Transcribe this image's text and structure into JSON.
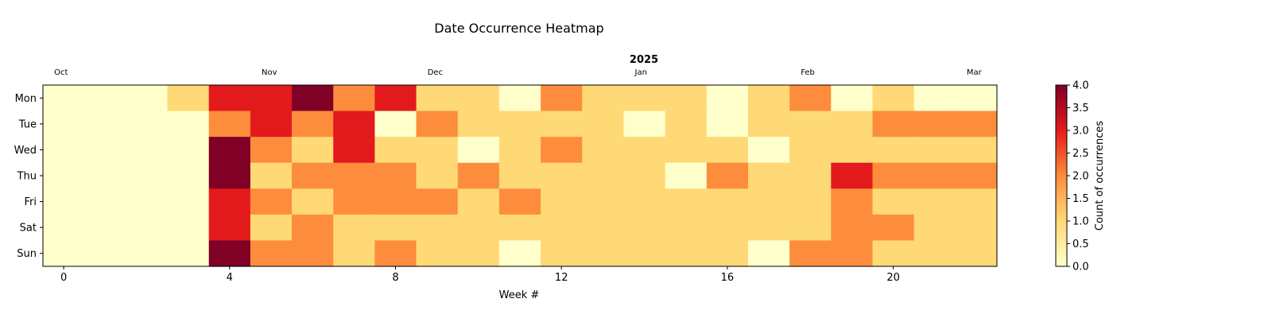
{
  "chart_data": {
    "type": "heatmap",
    "title": "Date Occurrence Heatmap",
    "year_label": "2025",
    "xlabel": "Week #",
    "ylabel": "",
    "x_ticks": [
      0,
      4,
      8,
      12,
      16,
      20
    ],
    "x_range": [
      -0.5,
      22.5
    ],
    "month_labels": [
      {
        "label": "Oct",
        "week": 0
      },
      {
        "label": "Nov",
        "week": 5
      },
      {
        "label": "Dec",
        "week": 9
      },
      {
        "label": "Jan",
        "week": 14
      },
      {
        "label": "Feb",
        "week": 18
      },
      {
        "label": "Mar",
        "week": 22
      }
    ],
    "rows": [
      "Mon",
      "Tue",
      "Wed",
      "Thu",
      "Fri",
      "Sat",
      "Sun"
    ],
    "weeks": [
      0,
      1,
      2,
      3,
      4,
      5,
      6,
      7,
      8,
      9,
      10,
      11,
      12,
      13,
      14,
      15,
      16,
      17,
      18,
      19,
      20,
      21,
      22
    ],
    "values": [
      [
        0,
        0,
        0,
        1,
        3,
        3,
        4,
        2,
        3,
        1,
        1,
        0,
        2,
        1,
        1,
        1,
        0,
        1,
        2,
        0,
        1,
        0,
        0
      ],
      [
        0,
        0,
        0,
        0,
        2,
        3,
        2,
        3,
        0,
        2,
        1,
        1,
        1,
        1,
        0,
        1,
        0,
        1,
        1,
        1,
        2,
        2,
        2
      ],
      [
        0,
        0,
        0,
        0,
        4,
        2,
        1,
        3,
        1,
        1,
        0,
        1,
        2,
        1,
        1,
        1,
        1,
        0,
        1,
        1,
        1,
        1,
        1
      ],
      [
        0,
        0,
        0,
        0,
        4,
        1,
        2,
        2,
        2,
        1,
        2,
        1,
        1,
        1,
        1,
        0,
        2,
        1,
        1,
        3,
        2,
        2,
        2
      ],
      [
        0,
        0,
        0,
        0,
        3,
        2,
        1,
        2,
        2,
        2,
        1,
        2,
        1,
        1,
        1,
        1,
        1,
        1,
        1,
        2,
        1,
        1,
        1
      ],
      [
        0,
        0,
        0,
        0,
        3,
        1,
        2,
        1,
        1,
        1,
        1,
        1,
        1,
        1,
        1,
        1,
        1,
        1,
        1,
        2,
        2,
        1,
        1
      ],
      [
        0,
        0,
        0,
        0,
        4,
        2,
        2,
        1,
        2,
        1,
        1,
        0,
        1,
        1,
        1,
        1,
        1,
        0,
        2,
        2,
        1,
        1,
        1
      ]
    ],
    "color_scale": {
      "min": 0,
      "max": 4,
      "colors": [
        "#ffffcc",
        "#fed976",
        "#fd8d3c",
        "#e31a1c",
        "#800026"
      ]
    },
    "colorbar_label": "Count of occurrences",
    "colorbar_ticks": [
      "0.0",
      "0.5",
      "1.0",
      "1.5",
      "2.0",
      "2.5",
      "3.0",
      "3.5",
      "4.0"
    ]
  }
}
